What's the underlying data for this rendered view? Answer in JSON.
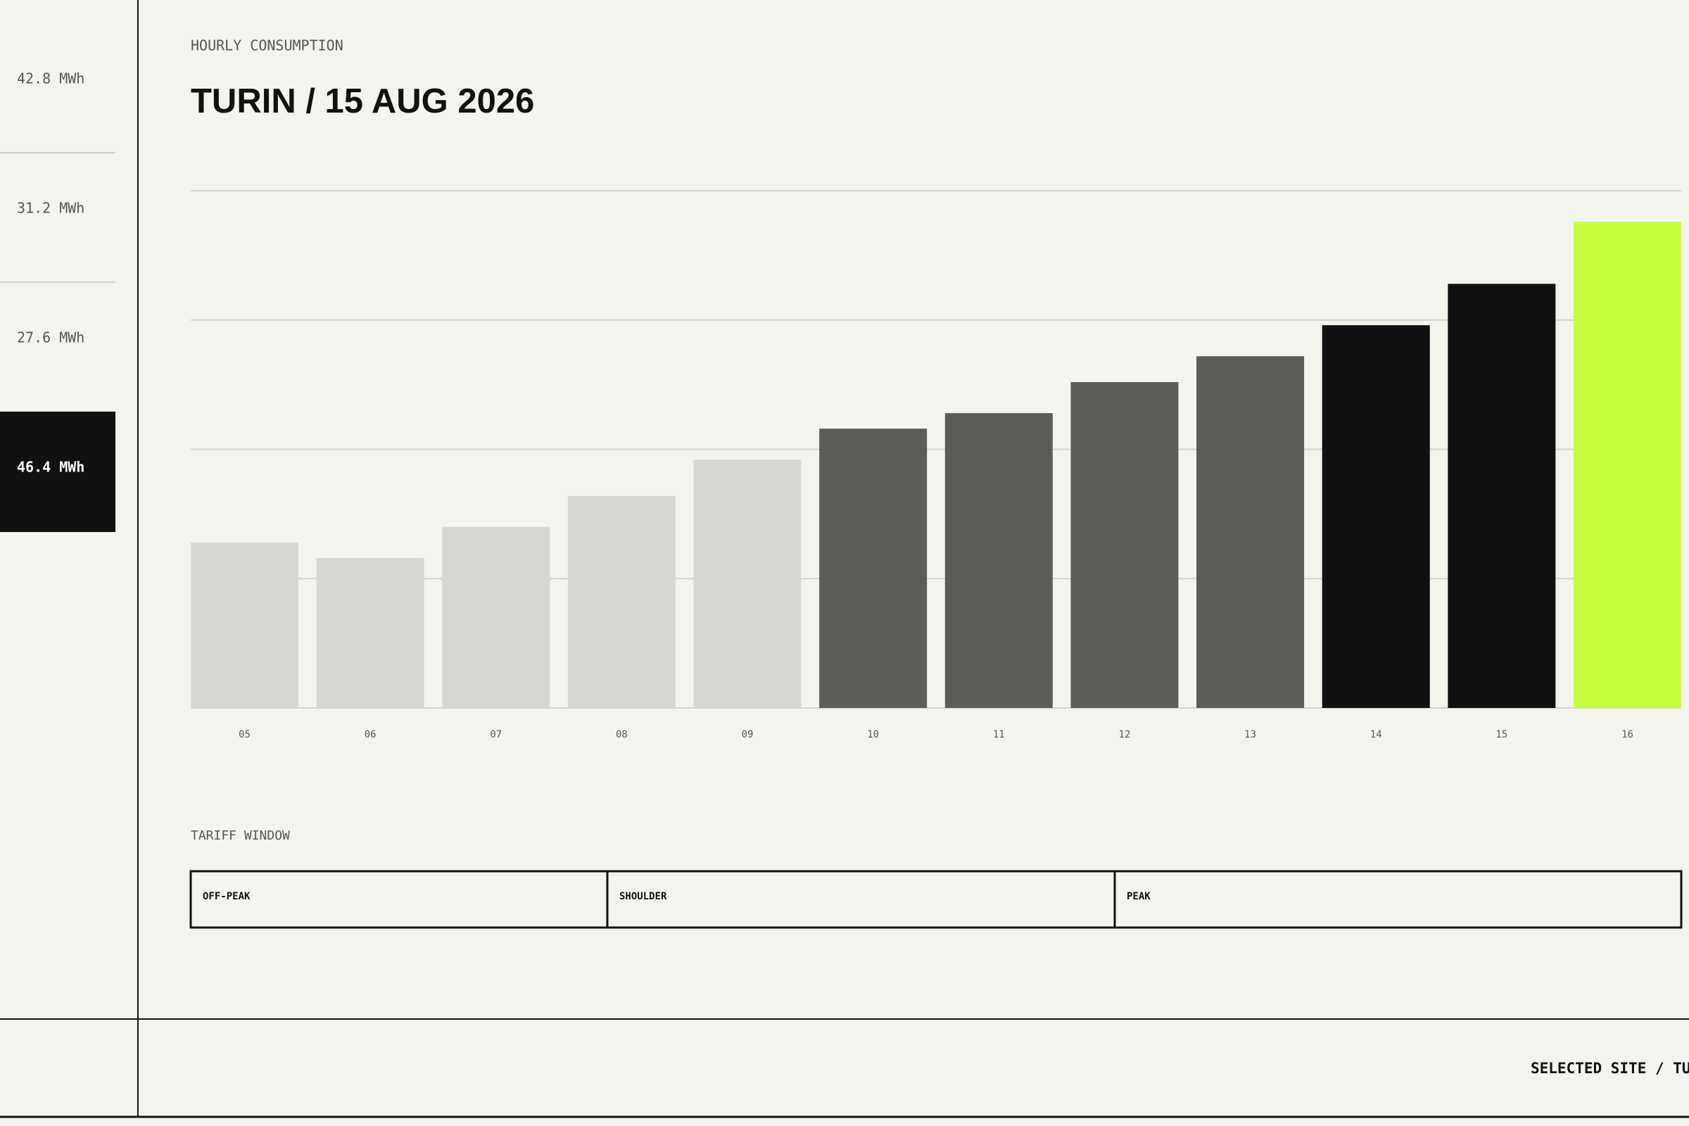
{
  "sidebar": {
    "items": [
      {
        "label": "42.8 MWh"
      },
      {
        "label": "31.2 MWh"
      },
      {
        "label": "27.6 MWh"
      },
      {
        "label": "46.4 MWh",
        "active": true
      }
    ]
  },
  "header": {
    "eyebrow": "HOURLY CONSUMPTION",
    "title": "TURIN / 15 AUG 2026"
  },
  "chart_data": {
    "type": "bar",
    "categories": [
      "05",
      "06",
      "07",
      "08",
      "09",
      "10",
      "11",
      "12",
      "13",
      "14",
      "15",
      "16"
    ],
    "values": [
      32,
      29,
      35,
      41,
      48,
      54,
      57,
      63,
      68,
      74,
      82,
      94
    ],
    "colors": [
      "#d8d8d2",
      "#d8d8d2",
      "#d8d8d2",
      "#d8d8d2",
      "#d8d8d2",
      "#5c5d57",
      "#5c5d57",
      "#5c5d57",
      "#5c5d57",
      "#111111",
      "#111111",
      "#c6ff3c"
    ],
    "ylim": [
      0,
      100
    ],
    "yticks": [
      0,
      25,
      50,
      75,
      100
    ],
    "grid": true
  },
  "tariff": {
    "title": "TARIFF WINDOW",
    "segments": [
      {
        "label": "OFF-PEAK"
      },
      {
        "label": "SHOULDER"
      },
      {
        "label": "PEAK"
      }
    ]
  },
  "footer": {
    "text": "SELECTED SITE / TURIN"
  }
}
